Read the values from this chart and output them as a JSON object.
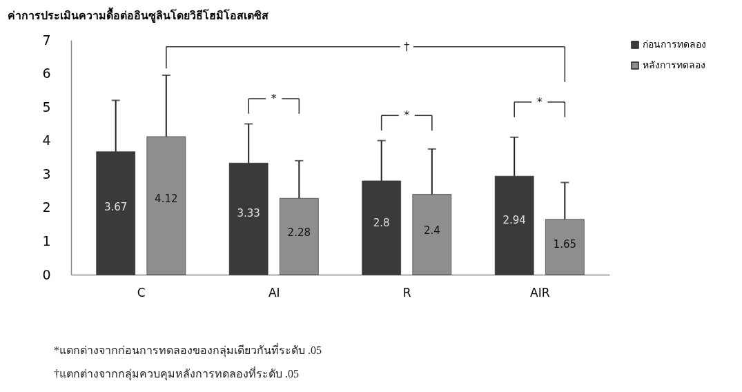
{
  "chart_data": {
    "type": "bar",
    "title": "ค่าการประเมินความดื้อต่ออินซูลินโดยวิธีโฮมิโอสเตซิส",
    "categories": [
      "C",
      "AI",
      "R",
      "AIR"
    ],
    "series": [
      {
        "name": "ก่อนการทดลอง",
        "color": "#3a3a3a",
        "values": [
          3.67,
          3.33,
          2.8,
          2.94
        ],
        "errors": [
          [
            3.67,
            5.2
          ],
          [
            3.33,
            4.5
          ],
          [
            2.8,
            4.0
          ],
          [
            2.94,
            4.1
          ]
        ]
      },
      {
        "name": "หลังการทดลอง",
        "color": "#8e8e8e",
        "values": [
          4.12,
          2.28,
          2.4,
          1.65
        ],
        "errors": [
          [
            4.12,
            5.95
          ],
          [
            2.28,
            3.4
          ],
          [
            2.4,
            3.75
          ],
          [
            1.65,
            2.75
          ]
        ]
      }
    ],
    "ylim": [
      0,
      7
    ],
    "yticks": [
      0,
      1,
      2,
      3,
      4,
      5,
      6,
      7
    ],
    "grid": false,
    "legend": "right",
    "data_labels": true,
    "annotations": [
      "*",
      "*",
      "*",
      "†",
      "*แตกต่างจากก่อนการทดลองของกลุ่มเดียวกันที่ระดับ .05",
      "†แตกต่างจากกลุ่มควบคุมหลังการทดลองที่ระดับ .05"
    ]
  }
}
